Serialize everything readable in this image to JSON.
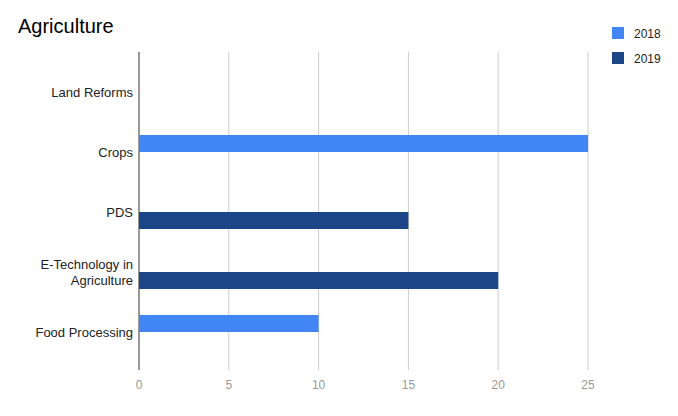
{
  "chart_data": {
    "type": "bar",
    "title": "Agriculture",
    "orientation": "horizontal",
    "categories": [
      "Land Reforms",
      "Crops",
      "PDS",
      "E-Technology in Agriculture",
      "Food Processing"
    ],
    "series": [
      {
        "name": "2018",
        "color": "#4285f4",
        "values": [
          null,
          25,
          null,
          null,
          10
        ]
      },
      {
        "name": "2019",
        "color": "#1c4587",
        "values": [
          null,
          null,
          15,
          20,
          null
        ]
      }
    ],
    "xlim": [
      0,
      25
    ],
    "xticks": [
      0,
      5,
      10,
      15,
      20,
      25
    ],
    "grid": true,
    "legend": "top-right"
  }
}
